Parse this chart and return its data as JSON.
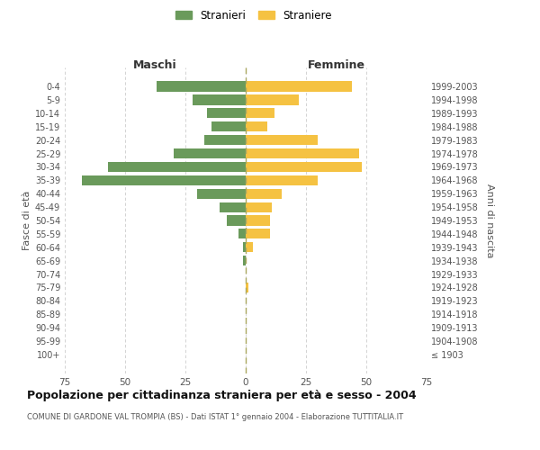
{
  "age_groups": [
    "100+",
    "95-99",
    "90-94",
    "85-89",
    "80-84",
    "75-79",
    "70-74",
    "65-69",
    "60-64",
    "55-59",
    "50-54",
    "45-49",
    "40-44",
    "35-39",
    "30-34",
    "25-29",
    "20-24",
    "15-19",
    "10-14",
    "5-9",
    "0-4"
  ],
  "birth_years": [
    "≤ 1903",
    "1904-1908",
    "1909-1913",
    "1914-1918",
    "1919-1923",
    "1924-1928",
    "1929-1933",
    "1934-1938",
    "1939-1943",
    "1944-1948",
    "1949-1953",
    "1954-1958",
    "1959-1963",
    "1964-1968",
    "1969-1973",
    "1974-1978",
    "1979-1983",
    "1984-1988",
    "1989-1993",
    "1994-1998",
    "1999-2003"
  ],
  "males": [
    0,
    0,
    0,
    0,
    0,
    0,
    0,
    1,
    1,
    3,
    8,
    11,
    20,
    68,
    57,
    30,
    17,
    14,
    16,
    22,
    37
  ],
  "females": [
    0,
    0,
    0,
    0,
    0,
    1,
    0,
    0,
    3,
    10,
    10,
    11,
    15,
    30,
    48,
    47,
    30,
    9,
    12,
    22,
    44
  ],
  "male_color": "#6a9a5b",
  "female_color": "#f5c242",
  "title": "Popolazione per cittadinanza straniera per età e sesso - 2004",
  "subtitle": "COMUNE DI GARDONE VAL TROMPIA (BS) - Dati ISTAT 1° gennaio 2004 - Elaborazione TUTTITALIA.IT",
  "xlabel_left": "Maschi",
  "xlabel_right": "Femmine",
  "ylabel_left": "Fasce di età",
  "ylabel_right": "Anni di nascita",
  "legend_male": "Stranieri",
  "legend_female": "Straniere",
  "xlim": 75,
  "background_color": "#ffffff",
  "grid_color": "#cccccc"
}
